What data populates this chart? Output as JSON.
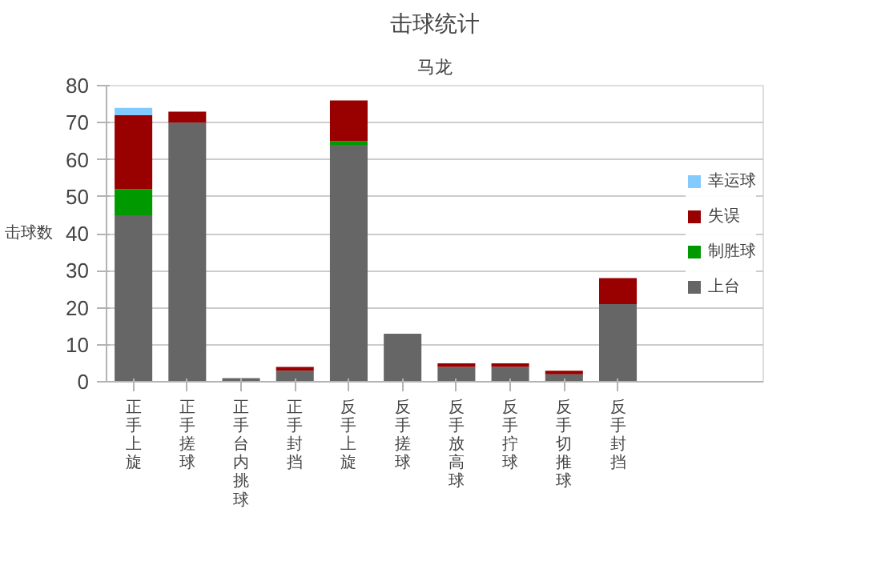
{
  "chart_data": {
    "type": "bar",
    "title": "击球统计",
    "subtitle": "马龙",
    "ylabel": "击球数",
    "categories": [
      "正手上旋",
      "正手搓球",
      "正手台内挑球",
      "正手封挡",
      "反手上旋",
      "反手搓球",
      "反手放高球",
      "反手拧球",
      "反手切推球",
      "反手封挡"
    ],
    "stacked": true,
    "ylim": [
      0,
      80
    ],
    "yticks": [
      0,
      10,
      20,
      30,
      40,
      50,
      60,
      70,
      80
    ],
    "grid": "y",
    "legend": "right",
    "series": [
      {
        "name": "上台",
        "color": "#666666",
        "values": [
          45,
          70,
          1,
          3,
          64,
          13,
          4,
          4,
          2,
          21
        ]
      },
      {
        "name": "制胜球",
        "color": "#009900",
        "values": [
          7,
          0,
          0,
          0,
          1,
          0,
          0,
          0,
          0,
          0
        ]
      },
      {
        "name": "失误",
        "color": "#990000",
        "values": [
          20,
          3,
          0,
          1,
          11,
          0,
          1,
          1,
          1,
          7
        ]
      },
      {
        "name": "幸运球",
        "color": "#83caff",
        "values": [
          2,
          0,
          0,
          0,
          0,
          0,
          0,
          0,
          0,
          0
        ]
      }
    ]
  }
}
